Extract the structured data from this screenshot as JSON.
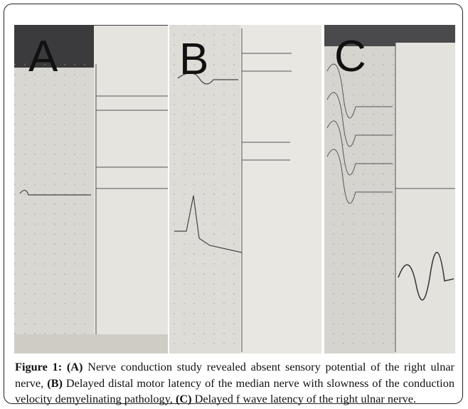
{
  "figure": {
    "panels": [
      {
        "label": "A"
      },
      {
        "label": "B"
      },
      {
        "label": "C"
      }
    ],
    "caption": {
      "label": "Figure 1:",
      "parts": [
        {
          "marker": "(A)",
          "text": "Nerve conduction study revealed absent sensory potential of the right ulnar nerve,"
        },
        {
          "marker": "(B)",
          "text": "Delayed distal motor latency of the median nerve with slowness of the conduction velocity demyelinating pathology,"
        },
        {
          "marker": "(C)",
          "text": "Delayed f wave latency of the right ulnar nerve."
        }
      ]
    }
  }
}
